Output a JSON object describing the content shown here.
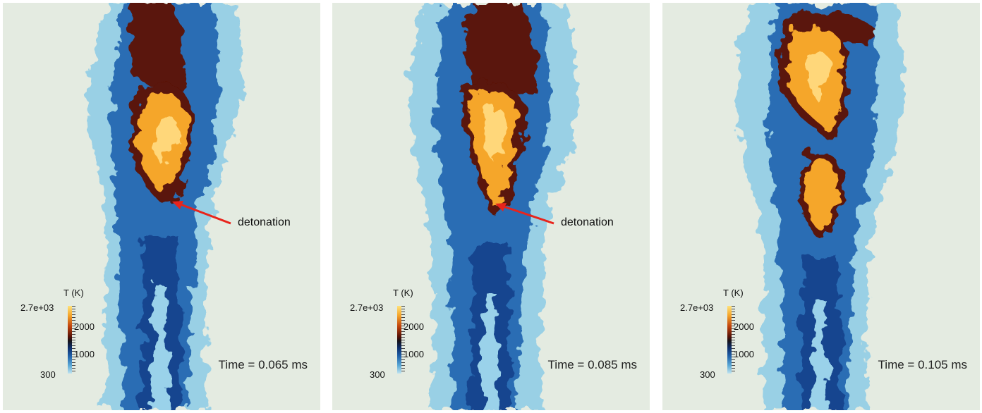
{
  "panels": [
    {
      "time_label": "Time = 0.065 ms",
      "annotation": "detonation"
    },
    {
      "time_label": "Time = 0.085 ms",
      "annotation": "detonation"
    },
    {
      "time_label": "Time = 0.105 ms",
      "annotation": ""
    }
  ],
  "colorbar": {
    "title": "T (K)",
    "max_label": "2.7e+03",
    "mid_label_high": "2000",
    "mid_label_low": "1000",
    "min_label": "300"
  },
  "colors": {
    "background": "#e4ebe1",
    "cold": "#1f5fa8",
    "cool_outer": "#6fb7de",
    "hot": "#f5a62b",
    "flame_front": "#5a1207",
    "arrow": "#e8241c"
  }
}
